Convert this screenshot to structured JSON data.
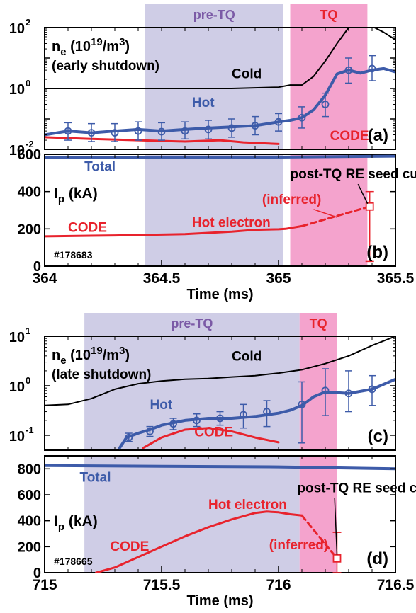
{
  "colors": {
    "cold": "#000000",
    "hot": "#3d5ba9",
    "code": "#e8232d",
    "total": "#3d5ba9",
    "pre_tq_band": "#cfcde6",
    "tq_band": "#f4a3cd",
    "pre_tq_label": "#7b5aa6",
    "tq_label": "#e8232d"
  },
  "chart_data": [
    {
      "id": "a",
      "type": "line",
      "panel_label": "(a)",
      "yscale": "log",
      "xlim": [
        364,
        365.5
      ],
      "ylim": [
        0.01,
        100
      ],
      "yticks": [
        {
          "v": 0.01,
          "base": "10",
          "exp": "-2"
        },
        {
          "v": 1,
          "base": "10",
          "exp": "0"
        },
        {
          "v": 100,
          "base": "10",
          "exp": "2"
        }
      ],
      "bands": [
        {
          "name": "pre-TQ",
          "x0": 364.43,
          "x1": 365.02,
          "color": "pre_tq",
          "label": "pre-TQ"
        },
        {
          "name": "TQ",
          "x0": 365.05,
          "x1": 365.38,
          "color": "tq",
          "label": "TQ"
        }
      ],
      "ylabel_main": "n",
      "ylabel_sub": "e",
      "ylabel_rest": " (10",
      "ylabel_sup": "19",
      "ylabel_end": "/m",
      "ylabel_sup2": "3",
      "ylabel_close": ")",
      "subtitle": "(early shutdown)",
      "series": [
        {
          "name": "Cold",
          "color": "cold",
          "width": 2,
          "x": [
            364,
            364.4,
            364.8,
            365.0,
            365.05,
            365.1,
            365.15,
            365.2,
            365.25,
            365.3,
            365.35,
            365.4,
            365.45,
            365.5
          ],
          "y": [
            1,
            1,
            1,
            1.1,
            1.3,
            1.3,
            2.5,
            8,
            30,
            100,
            150,
            110,
            70,
            40
          ]
        },
        {
          "name": "Hot",
          "color": "hot",
          "width": 4,
          "x": [
            364,
            364.1,
            364.2,
            364.3,
            364.4,
            364.5,
            364.6,
            364.7,
            364.8,
            364.9,
            365.0,
            365.05,
            365.1,
            365.15,
            365.2,
            365.25,
            365.3,
            365.35,
            365.4,
            365.45,
            365.5
          ],
          "y": [
            0.03,
            0.04,
            0.035,
            0.04,
            0.045,
            0.04,
            0.045,
            0.05,
            0.055,
            0.06,
            0.08,
            0.09,
            0.11,
            0.2,
            0.6,
            3,
            4,
            3.2,
            4,
            4.5,
            3.5
          ]
        },
        {
          "name": "CODE",
          "color": "code",
          "width": 3,
          "x": [
            364,
            364.2,
            364.4,
            364.6,
            364.75,
            364.85,
            365.0
          ],
          "y": [
            0.025,
            0.022,
            0.02,
            0.018,
            0.02,
            0.017,
            0.015
          ]
        }
      ],
      "errorbars": [
        {
          "x": 364.1,
          "y": 0.04,
          "lo": 0.02,
          "hi": 0.075
        },
        {
          "x": 364.2,
          "y": 0.035,
          "lo": 0.018,
          "hi": 0.07
        },
        {
          "x": 364.3,
          "y": 0.035,
          "lo": 0.018,
          "hi": 0.07
        },
        {
          "x": 364.4,
          "y": 0.04,
          "lo": 0.02,
          "hi": 0.08
        },
        {
          "x": 364.5,
          "y": 0.038,
          "lo": 0.02,
          "hi": 0.075
        },
        {
          "x": 364.6,
          "y": 0.04,
          "lo": 0.022,
          "hi": 0.08
        },
        {
          "x": 364.7,
          "y": 0.045,
          "lo": 0.022,
          "hi": 0.09
        },
        {
          "x": 364.8,
          "y": 0.05,
          "lo": 0.025,
          "hi": 0.1
        },
        {
          "x": 364.9,
          "y": 0.06,
          "lo": 0.03,
          "hi": 0.12
        },
        {
          "x": 365.0,
          "y": 0.08,
          "lo": 0.04,
          "hi": 0.15
        },
        {
          "x": 365.1,
          "y": 0.11,
          "lo": 0.05,
          "hi": 0.25
        },
        {
          "x": 365.2,
          "y": 0.3,
          "lo": 0.12,
          "hi": 0.7
        },
        {
          "x": 365.3,
          "y": 4,
          "lo": 1.5,
          "hi": 10
        },
        {
          "x": 365.4,
          "y": 4.5,
          "lo": 1.8,
          "hi": 12
        }
      ],
      "annotations": [
        {
          "text": "Cold",
          "x": 364.8,
          "y": 2.2,
          "color": "cold"
        },
        {
          "text": "Hot",
          "x": 364.63,
          "y": 0.25,
          "color": "hot"
        },
        {
          "text": "CODE",
          "x": 365.22,
          "y": 0.02,
          "color": "code"
        }
      ]
    },
    {
      "id": "b",
      "type": "line",
      "panel_label": "(b)",
      "yscale": "linear",
      "xlim": [
        364,
        365.5
      ],
      "ylim": [
        0,
        600
      ],
      "xticks": [
        "364",
        "364.5",
        "365",
        "365.5"
      ],
      "yticks": [
        "0",
        "200",
        "400",
        "600"
      ],
      "xlabel": "Time (ms)",
      "ylabel_main": "I",
      "ylabel_sub": "p",
      "ylabel_rest": " (kA)",
      "shot": "#178683",
      "bands": [
        {
          "name": "pre-TQ",
          "x0": 364.43,
          "x1": 365.02,
          "color": "pre_tq"
        },
        {
          "name": "TQ",
          "x0": 365.05,
          "x1": 365.38,
          "color": "tq"
        }
      ],
      "series": [
        {
          "name": "Total",
          "color": "total",
          "width": 4,
          "x": [
            364,
            364.5,
            365,
            365.5
          ],
          "y": [
            585,
            585,
            585,
            590
          ]
        },
        {
          "name": "CODE Hot electron",
          "color": "code",
          "width": 3,
          "x": [
            364,
            364.3,
            364.6,
            364.8,
            364.9,
            365.0,
            365.03,
            365.1
          ],
          "y": [
            160,
            165,
            172,
            185,
            195,
            198,
            200,
            215
          ]
        },
        {
          "name": "inferred",
          "color": "code",
          "width": 3,
          "dashed": true,
          "x": [
            365.1,
            365.39
          ],
          "y": [
            215,
            320
          ]
        }
      ],
      "seed_point": {
        "x": 365.39,
        "y": 320,
        "lo": 25,
        "hi": 400
      },
      "annotations": [
        {
          "text": "Total",
          "x": 364.17,
          "y": 510,
          "color": "total"
        },
        {
          "text": "post-TQ RE seed current",
          "x": 365.05,
          "y": 470,
          "color": "cold"
        },
        {
          "text": "(inferred)",
          "x": 364.93,
          "y": 335,
          "color": "code"
        },
        {
          "text": "CODE",
          "x": 364.1,
          "y": 185,
          "color": "code"
        },
        {
          "text": "Hot electron",
          "x": 364.63,
          "y": 210,
          "color": "code"
        }
      ]
    },
    {
      "id": "c",
      "type": "line",
      "panel_label": "(c)",
      "yscale": "log",
      "xlim": [
        715,
        716.5
      ],
      "ylim": [
        0.05,
        10
      ],
      "yticks": [
        {
          "v": 0.1,
          "base": "10",
          "exp": "-1"
        },
        {
          "v": 1,
          "base": "10",
          "exp": "0"
        },
        {
          "v": 10,
          "base": "10",
          "exp": "1"
        }
      ],
      "bands": [
        {
          "name": "pre-TQ",
          "x0": 715.17,
          "x1": 716.09,
          "color": "pre_tq",
          "label": "pre-TQ"
        },
        {
          "name": "TQ",
          "x0": 716.09,
          "x1": 716.25,
          "color": "tq",
          "label": "TQ"
        }
      ],
      "ylabel_main": "n",
      "ylabel_sub": "e",
      "ylabel_rest": " (10",
      "ylabel_sup": "19",
      "ylabel_end": "/m",
      "ylabel_sup2": "3",
      "ylabel_close": ")",
      "subtitle": "(late shutdown)",
      "series": [
        {
          "name": "Cold",
          "color": "cold",
          "width": 2,
          "x": [
            715,
            715.1,
            715.2,
            715.3,
            715.4,
            715.5,
            715.6,
            715.7,
            715.8,
            715.9,
            716.0,
            716.1,
            716.2,
            716.3,
            716.4,
            716.5
          ],
          "y": [
            0.4,
            0.42,
            0.55,
            0.85,
            1.1,
            1.25,
            1.35,
            1.4,
            1.5,
            1.6,
            1.8,
            2.1,
            2.8,
            4,
            6.5,
            10
          ]
        },
        {
          "name": "Hot",
          "color": "hot",
          "width": 4,
          "x": [
            715.32,
            715.35,
            715.4,
            715.45,
            715.5,
            715.6,
            715.7,
            715.8,
            715.9,
            716.0,
            716.05,
            716.1,
            716.15,
            716.2,
            716.3,
            716.4,
            716.5
          ],
          "y": [
            0.055,
            0.09,
            0.11,
            0.13,
            0.16,
            0.2,
            0.22,
            0.22,
            0.24,
            0.28,
            0.32,
            0.4,
            0.6,
            0.75,
            0.7,
            0.85,
            1.35
          ]
        },
        {
          "name": "CODE",
          "color": "code",
          "width": 3,
          "x": [
            715.42,
            715.5,
            715.6,
            715.7,
            715.8,
            715.9,
            716.0
          ],
          "y": [
            0.055,
            0.09,
            0.13,
            0.14,
            0.12,
            0.09,
            0.072
          ]
        }
      ],
      "errorbars": [
        {
          "x": 715.36,
          "y": 0.09,
          "lo": 0.075,
          "hi": 0.11
        },
        {
          "x": 715.45,
          "y": 0.12,
          "lo": 0.095,
          "hi": 0.15
        },
        {
          "x": 715.55,
          "y": 0.17,
          "lo": 0.13,
          "hi": 0.22
        },
        {
          "x": 715.65,
          "y": 0.2,
          "lo": 0.15,
          "hi": 0.27
        },
        {
          "x": 715.75,
          "y": 0.22,
          "lo": 0.16,
          "hi": 0.3
        },
        {
          "x": 715.85,
          "y": 0.26,
          "lo": 0.14,
          "hi": 0.42
        },
        {
          "x": 715.95,
          "y": 0.3,
          "lo": 0.15,
          "hi": 0.5
        },
        {
          "x": 716.1,
          "y": 0.42,
          "lo": 0.07,
          "hi": 1.2
        },
        {
          "x": 716.2,
          "y": 0.8,
          "lo": 0.25,
          "hi": 2.2
        },
        {
          "x": 716.3,
          "y": 0.7,
          "lo": 0.3,
          "hi": 2
        },
        {
          "x": 716.4,
          "y": 0.85,
          "lo": 0.4,
          "hi": 1.6
        }
      ],
      "annotations": [
        {
          "text": "Cold",
          "x": 715.8,
          "y": 3.2,
          "color": "cold"
        },
        {
          "text": "Hot",
          "x": 715.45,
          "y": 0.34,
          "color": "hot"
        },
        {
          "text": "CODE",
          "x": 715.64,
          "y": 0.095,
          "color": "code"
        }
      ]
    },
    {
      "id": "d",
      "type": "line",
      "panel_label": "(d)",
      "yscale": "linear",
      "xlim": [
        715,
        716.5
      ],
      "ylim": [
        0,
        900
      ],
      "xticks": [
        "715",
        "715.5",
        "716",
        "716.5"
      ],
      "yticks": [
        "0",
        "200",
        "400",
        "600",
        "800"
      ],
      "xlabel": "Time (ms)",
      "ylabel_main": "I",
      "ylabel_sub": "p",
      "ylabel_rest": " (kA)",
      "shot": "#178665",
      "bands": [
        {
          "name": "pre-TQ",
          "x0": 715.17,
          "x1": 716.09,
          "color": "pre_tq"
        },
        {
          "name": "TQ",
          "x0": 716.09,
          "x1": 716.25,
          "color": "tq"
        }
      ],
      "series": [
        {
          "name": "Total",
          "color": "total",
          "width": 4,
          "x": [
            715,
            715.5,
            716,
            716.5
          ],
          "y": [
            825,
            820,
            815,
            800
          ]
        },
        {
          "name": "CODE Hot electron",
          "color": "code",
          "width": 3,
          "x": [
            715.22,
            715.3,
            715.4,
            715.5,
            715.6,
            715.7,
            715.8,
            715.9,
            715.95,
            716.0,
            716.05,
            716.1
          ],
          "y": [
            0,
            40,
            120,
            200,
            280,
            350,
            410,
            460,
            470,
            465,
            450,
            440
          ]
        },
        {
          "name": "inferred",
          "color": "code",
          "width": 3,
          "dashed": true,
          "x": [
            716.1,
            716.25
          ],
          "y": [
            440,
            110
          ]
        }
      ],
      "seed_point": {
        "x": 716.25,
        "y": 110,
        "lo": 0,
        "hi": 310
      },
      "annotations": [
        {
          "text": "Total",
          "x": 715.15,
          "y": 700,
          "color": "total"
        },
        {
          "text": "post-TQ RE seed current",
          "x": 716.08,
          "y": 620,
          "color": "cold"
        },
        {
          "text": "Hot electron",
          "x": 715.7,
          "y": 490,
          "color": "code"
        },
        {
          "text": "CODE",
          "x": 715.28,
          "y": 170,
          "color": "code"
        },
        {
          "text": "(inferred)",
          "x": 715.96,
          "y": 180,
          "color": "code"
        }
      ]
    }
  ]
}
